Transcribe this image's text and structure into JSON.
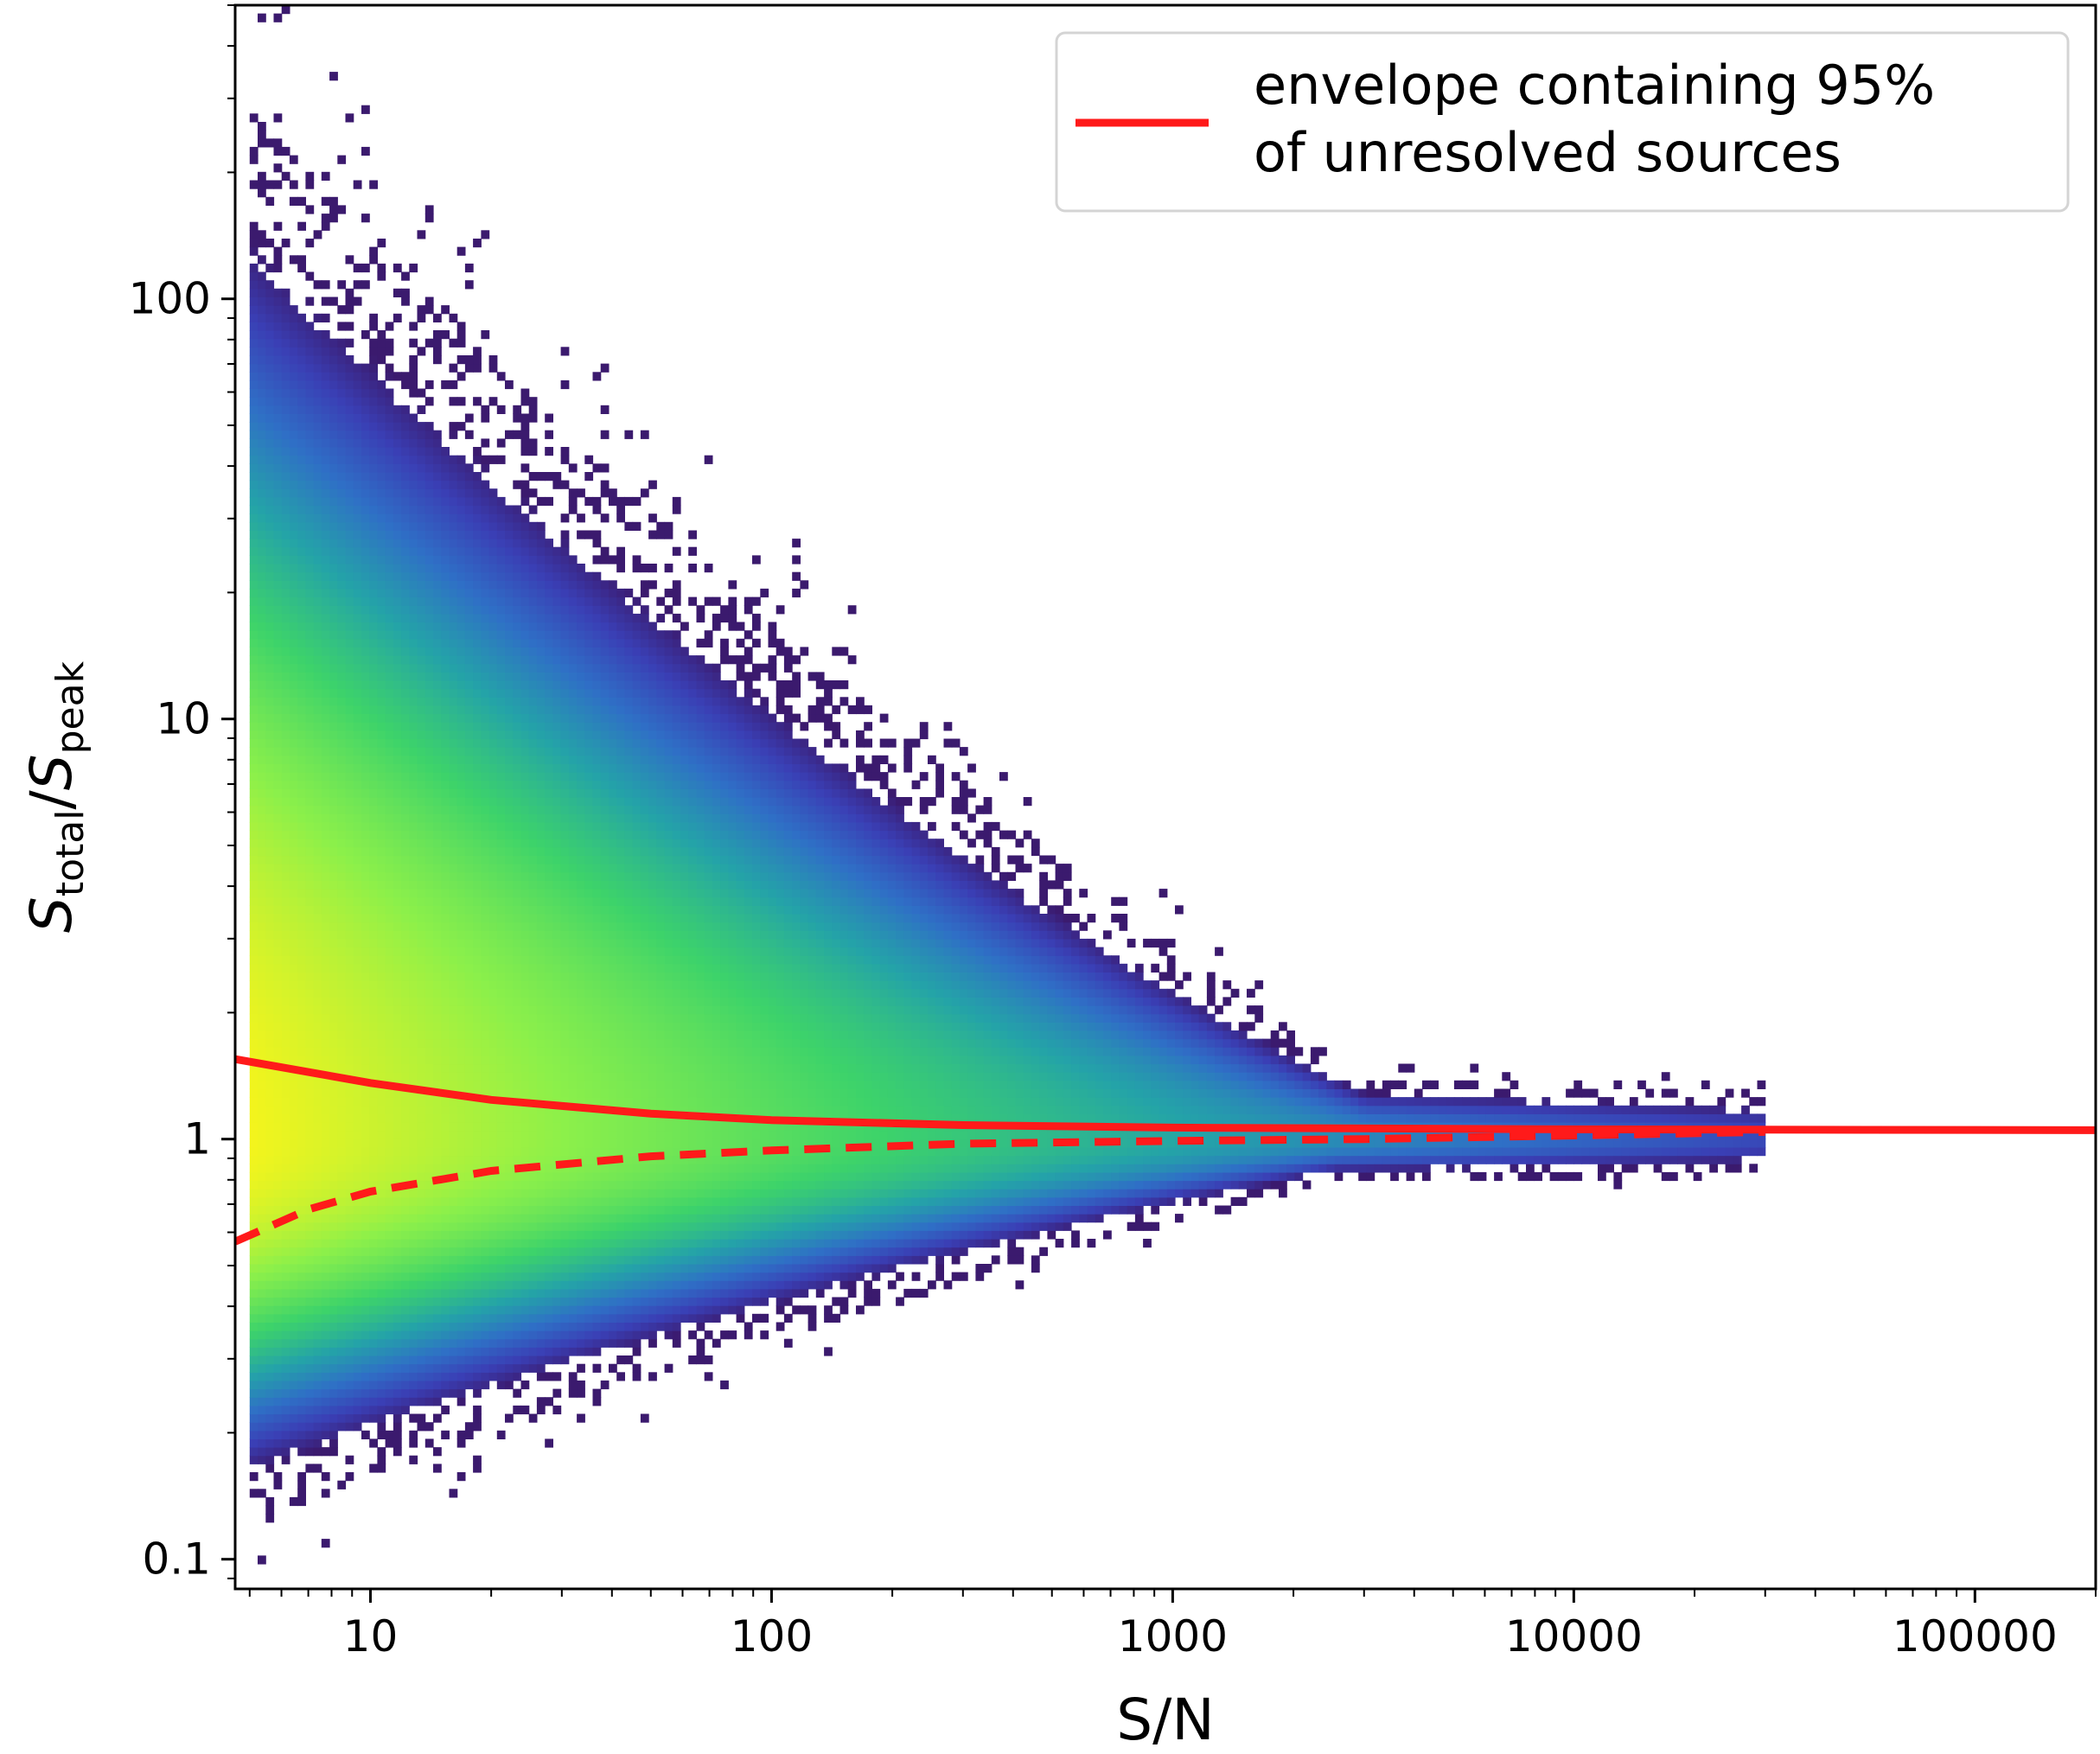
{
  "chart_data": {
    "type": "heatmap",
    "title": "",
    "xlabel": "S/N",
    "ylabel": {
      "main": "S",
      "sub1": "total",
      "slash": "/",
      "main2": "S",
      "sub2": "peak"
    },
    "x_scale": "log",
    "y_scale": "log",
    "xlim": [
      4.6,
      200000
    ],
    "ylim": [
      0.085,
      500
    ],
    "x_ticks": [
      {
        "value": 10,
        "label": "10"
      },
      {
        "value": 100,
        "label": "100"
      },
      {
        "value": 1000,
        "label": "1000"
      },
      {
        "value": 10000,
        "label": "10000"
      },
      {
        "value": 100000,
        "label": "100000"
      }
    ],
    "y_ticks": [
      {
        "value": 0.1,
        "label": "0.1"
      },
      {
        "value": 1,
        "label": "1"
      },
      {
        "value": 10,
        "label": "10"
      },
      {
        "value": 100,
        "label": "100"
      }
    ],
    "grid": false,
    "colormap": [
      "#3b1a6e",
      "#3a3fb5",
      "#2f6fc6",
      "#24a3a8",
      "#3dd36a",
      "#8cf04a",
      "#f4f41c"
    ],
    "density_model": {
      "sn_min": 5,
      "sn_max": 30000,
      "center_ratio": 1.0,
      "lower_edge_at_sn5": 0.22,
      "upper_edge_at_sn5": 100,
      "description_visible": false
    },
    "envelope": {
      "name": "envelope containing 95% of unresolved sources",
      "color": "#ff1a1a",
      "upper_points": [
        {
          "x": 4.6,
          "y": 1.55
        },
        {
          "x": 10,
          "y": 1.36
        },
        {
          "x": 20,
          "y": 1.24
        },
        {
          "x": 50,
          "y": 1.15
        },
        {
          "x": 100,
          "y": 1.11
        },
        {
          "x": 300,
          "y": 1.08
        },
        {
          "x": 1000,
          "y": 1.065
        },
        {
          "x": 10000,
          "y": 1.055
        },
        {
          "x": 200000,
          "y": 1.05
        }
      ],
      "lower_points": [
        {
          "x": 4.6,
          "y": 0.57
        },
        {
          "x": 7,
          "y": 0.68
        },
        {
          "x": 10,
          "y": 0.75
        },
        {
          "x": 20,
          "y": 0.84
        },
        {
          "x": 50,
          "y": 0.91
        },
        {
          "x": 100,
          "y": 0.94
        },
        {
          "x": 300,
          "y": 0.975
        },
        {
          "x": 1000,
          "y": 0.99
        },
        {
          "x": 3000,
          "y": 1.0
        },
        {
          "x": 10000,
          "y": 1.02
        },
        {
          "x": 30000,
          "y": 1.04
        }
      ]
    },
    "legend": {
      "placement": "top-right",
      "line1": "envelope containing 95%",
      "line2": "of unresolved sources"
    }
  }
}
